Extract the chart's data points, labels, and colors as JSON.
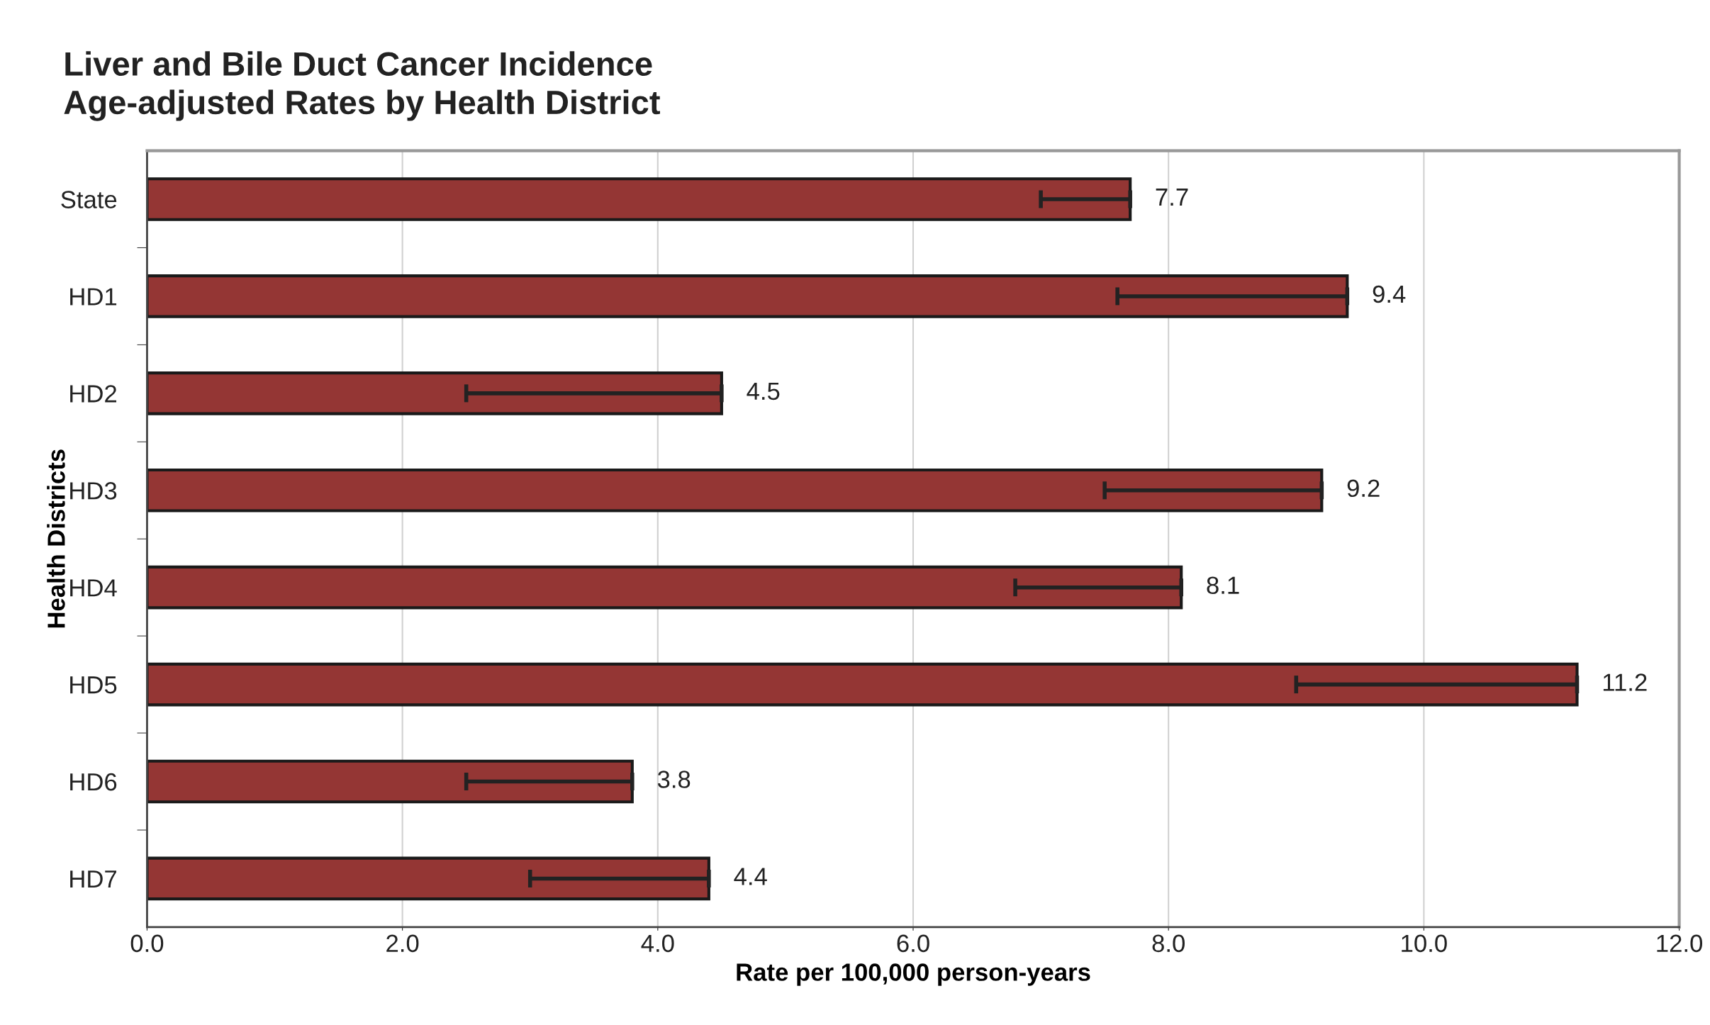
{
  "chart_data": {
    "type": "bar",
    "orientation": "horizontal",
    "title": "Liver and Bile Duct Cancer Incidence\nAge-adjusted Rates by Health District",
    "xlabel": "Rate per 100,000 person-years",
    "ylabel": "Health Districts",
    "categories": [
      "State",
      "HD1",
      "HD2",
      "HD3",
      "HD4",
      "HD5",
      "HD6",
      "HD7"
    ],
    "values": [
      7.7,
      9.4,
      4.5,
      9.2,
      8.1,
      11.2,
      3.8,
      4.4
    ],
    "errors": [
      [
        7.0,
        7.7
      ],
      [
        7.6,
        9.4
      ],
      [
        2.5,
        4.5
      ],
      [
        7.5,
        9.2
      ],
      [
        6.8,
        8.1
      ],
      [
        9.0,
        11.2
      ],
      [
        2.5,
        3.8
      ],
      [
        3.0,
        4.4
      ]
    ],
    "color": "#943634",
    "data_labels": true,
    "grid": "x",
    "legend": false,
    "xlim": [
      0,
      12
    ],
    "xticks": [
      {
        "value": 0,
        "label": "0.0"
      },
      {
        "value": 2,
        "label": "2.0"
      },
      {
        "value": 4,
        "label": "4.0"
      },
      {
        "value": 6,
        "label": "6.0"
      },
      {
        "value": 8,
        "label": "8.0"
      },
      {
        "value": 10,
        "label": "10.0"
      },
      {
        "value": 12,
        "label": "12.0"
      }
    ]
  }
}
